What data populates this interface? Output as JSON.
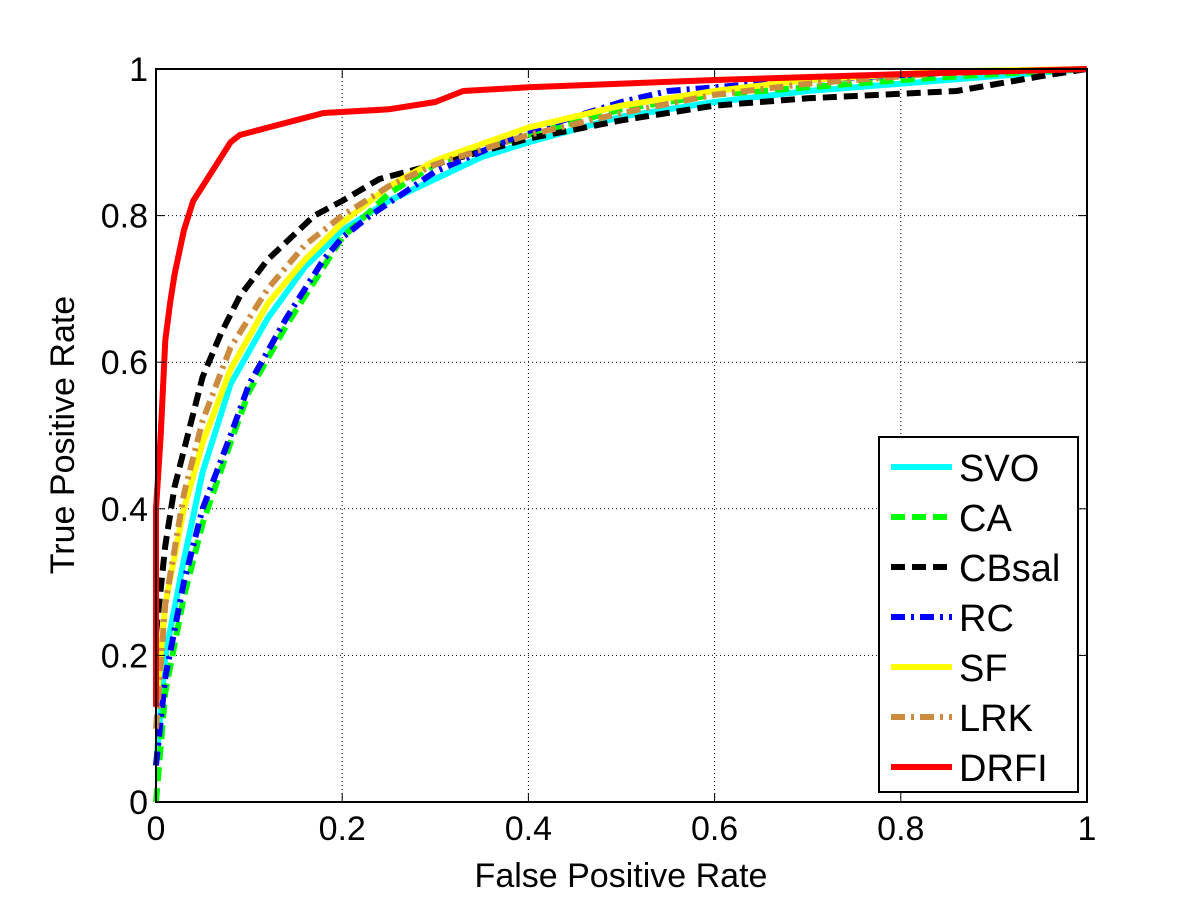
{
  "chart_data": {
    "type": "line",
    "title": "",
    "xlabel": "False Positive Rate",
    "ylabel": "True Positive Rate",
    "xlim": [
      0,
      1
    ],
    "ylim": [
      0,
      1
    ],
    "grid": true,
    "legend_position": "bottom-right",
    "xticks": [
      0,
      0.2,
      0.4,
      0.6,
      0.8,
      1
    ],
    "yticks": [
      0,
      0.2,
      0.4,
      0.6,
      0.8,
      1
    ],
    "xtick_labels": [
      "0",
      "0.2",
      "0.4",
      "0.6",
      "0.8",
      "1"
    ],
    "ytick_labels": [
      "0",
      "0.2",
      "0.4",
      "0.6",
      "0.8",
      "1"
    ],
    "series": [
      {
        "name": "SVO",
        "color": "#00ffff",
        "style": "solid",
        "x": [
          0,
          0.01,
          0.03,
          0.05,
          0.08,
          0.12,
          0.16,
          0.2,
          0.25,
          0.3,
          0.35,
          0.4,
          0.5,
          0.6,
          0.7,
          0.8,
          0.9,
          1
        ],
        "y": [
          0.05,
          0.2,
          0.33,
          0.45,
          0.57,
          0.66,
          0.73,
          0.78,
          0.82,
          0.85,
          0.88,
          0.9,
          0.935,
          0.955,
          0.97,
          0.98,
          0.99,
          1
        ]
      },
      {
        "name": "CA",
        "color": "#00ff00",
        "style": "dashed",
        "x": [
          0,
          0.01,
          0.03,
          0.05,
          0.08,
          0.1,
          0.14,
          0.18,
          0.2,
          0.25,
          0.3,
          0.4,
          0.5,
          0.6,
          0.7,
          0.8,
          0.9,
          1
        ],
        "y": [
          0,
          0.15,
          0.28,
          0.38,
          0.49,
          0.56,
          0.65,
          0.73,
          0.77,
          0.83,
          0.87,
          0.91,
          0.945,
          0.965,
          0.975,
          0.985,
          0.993,
          1
        ]
      },
      {
        "name": "CBsal",
        "color": "#000000",
        "style": "dashed",
        "x": [
          0,
          0.01,
          0.02,
          0.03,
          0.05,
          0.07,
          0.09,
          0.12,
          0.17,
          0.2,
          0.24,
          0.3,
          0.4,
          0.5,
          0.6,
          0.7,
          0.86,
          0.95,
          1
        ],
        "y": [
          0.23,
          0.35,
          0.43,
          0.48,
          0.58,
          0.64,
          0.69,
          0.74,
          0.8,
          0.82,
          0.85,
          0.87,
          0.905,
          0.93,
          0.95,
          0.96,
          0.97,
          0.99,
          1
        ]
      },
      {
        "name": "RC",
        "color": "#0000ff",
        "style": "dashdot",
        "x": [
          0,
          0.01,
          0.03,
          0.05,
          0.08,
          0.1,
          0.14,
          0.18,
          0.2,
          0.23,
          0.3,
          0.4,
          0.5,
          0.55,
          0.6,
          0.7,
          0.85,
          1
        ],
        "y": [
          0.05,
          0.17,
          0.3,
          0.4,
          0.5,
          0.57,
          0.66,
          0.74,
          0.77,
          0.8,
          0.86,
          0.915,
          0.955,
          0.97,
          0.975,
          0.985,
          0.995,
          1
        ]
      },
      {
        "name": "SF",
        "color": "#ffff00",
        "style": "solid",
        "x": [
          0,
          0.01,
          0.03,
          0.05,
          0.08,
          0.12,
          0.16,
          0.2,
          0.25,
          0.3,
          0.4,
          0.5,
          0.6,
          0.7,
          0.85,
          1
        ],
        "y": [
          0.13,
          0.27,
          0.4,
          0.49,
          0.59,
          0.68,
          0.74,
          0.79,
          0.84,
          0.875,
          0.92,
          0.95,
          0.97,
          0.985,
          0.997,
          1
        ]
      },
      {
        "name": "LRK",
        "color": "#cc8c40",
        "style": "dashdot",
        "x": [
          0,
          0.01,
          0.03,
          0.05,
          0.08,
          0.12,
          0.16,
          0.2,
          0.25,
          0.3,
          0.4,
          0.5,
          0.6,
          0.7,
          0.85,
          1
        ],
        "y": [
          0.1,
          0.27,
          0.42,
          0.52,
          0.62,
          0.7,
          0.76,
          0.8,
          0.84,
          0.87,
          0.91,
          0.94,
          0.965,
          0.98,
          0.995,
          1
        ]
      },
      {
        "name": "DRFI",
        "color": "#ff0000",
        "style": "solid",
        "x": [
          0,
          0,
          0.005,
          0.01,
          0.015,
          0.02,
          0.03,
          0.04,
          0.05,
          0.06,
          0.07,
          0.08,
          0.09,
          0.12,
          0.15,
          0.18,
          0.25,
          0.3,
          0.33,
          0.4,
          0.6,
          0.8,
          1
        ],
        "y": [
          0.13,
          0.4,
          0.5,
          0.63,
          0.68,
          0.72,
          0.78,
          0.82,
          0.84,
          0.86,
          0.88,
          0.9,
          0.91,
          0.92,
          0.93,
          0.94,
          0.945,
          0.955,
          0.97,
          0.975,
          0.985,
          0.993,
          1
        ]
      }
    ]
  }
}
